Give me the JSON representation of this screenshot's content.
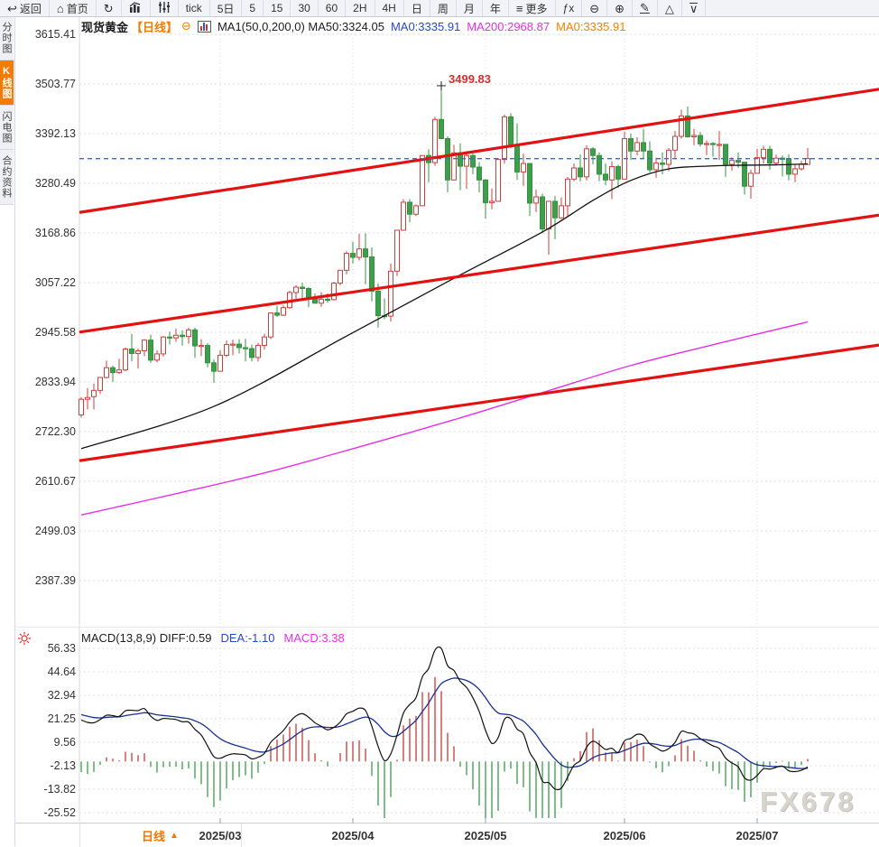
{
  "toolbar": {
    "items": [
      {
        "name": "back-button",
        "icon": "back-icon",
        "glyph": "↩",
        "label": "返回"
      },
      {
        "name": "home-button",
        "icon": "home-icon",
        "glyph": "⌂",
        "label": "首页"
      },
      {
        "name": "refresh-button",
        "icon": "refresh-icon",
        "glyph": "↻",
        "label": ""
      },
      {
        "name": "kline-chart-button",
        "icon": "kline-bars-icon",
        "glyph": "svg-kline",
        "label": ""
      },
      {
        "name": "indicator-settings-button",
        "icon": "sliders-icon",
        "glyph": "svg-sliders",
        "label": ""
      },
      {
        "name": "period-tick-button",
        "label": "tick"
      },
      {
        "name": "period-5day-button",
        "label": "5日"
      },
      {
        "name": "period-5min-button",
        "label": "5"
      },
      {
        "name": "period-15min-button",
        "label": "15"
      },
      {
        "name": "period-30min-button",
        "label": "30"
      },
      {
        "name": "period-60min-button",
        "label": "60"
      },
      {
        "name": "period-2h-button",
        "label": "2H"
      },
      {
        "name": "period-4h-button",
        "label": "4H"
      },
      {
        "name": "period-day-button",
        "label": "日"
      },
      {
        "name": "period-week-button",
        "label": "周"
      },
      {
        "name": "period-month-button",
        "label": "月"
      },
      {
        "name": "period-year-button",
        "label": "年"
      },
      {
        "name": "more-button",
        "icon": "menu-icon",
        "glyph": "≡",
        "label": "更多"
      },
      {
        "name": "fx-indicator-button",
        "label": "ƒx"
      },
      {
        "name": "zoom-out-button",
        "icon": "zoom-out-icon",
        "glyph": "⊖",
        "label": ""
      },
      {
        "name": "zoom-in-button",
        "icon": "zoom-in-icon",
        "glyph": "⊕",
        "label": ""
      },
      {
        "name": "draw-button",
        "icon": "pencil-icon",
        "glyph": "✎",
        "label": "",
        "underline": true
      },
      {
        "name": "scroll-up-button",
        "icon": "triangle-up-icon",
        "glyph": "△",
        "label": ""
      },
      {
        "name": "scroll-down-button",
        "icon": "chevron-down-line-icon",
        "glyph": "∨",
        "label": "",
        "overline": true
      }
    ]
  },
  "sidebar": {
    "tabs": [
      {
        "name": "tab-time-chart",
        "label": "分时图",
        "active": false
      },
      {
        "name": "tab-kline-chart",
        "label": "K线图",
        "active": true
      },
      {
        "name": "tab-flash-chart",
        "label": "闪电图",
        "active": false
      },
      {
        "name": "tab-contract-info",
        "label": "合约资料",
        "active": false
      }
    ]
  },
  "header": {
    "symbol": "现货黄金",
    "period_tag": "【日线】",
    "minus_icon": "⊖",
    "ma1_label": "MA1(50,0,200,0) MA50:3324.05",
    "ma0_blue": "MA0:3335.91",
    "ma200_label": "MA200:2968.87",
    "ma0_orange": "MA0:3335.91"
  },
  "macd_header": {
    "label": "MACD(13,8,9) DIFF:0.59",
    "dea": "DEA:-1.10",
    "macd": "MACD:3.38"
  },
  "bottom_bar": {
    "period_label": "日线",
    "period_arrow": "▲"
  },
  "watermark": "FX678",
  "colors": {
    "up": "#c9403e",
    "down": "#3f9e4c",
    "down_stroke": "#35913f",
    "trendline": "#e31212",
    "ma50": "#111111",
    "ma200": "#e62ee6",
    "current_price": "#1e6fff",
    "diff_line": "#111111",
    "dea_line": "#1a2f8f",
    "grid": "#dcdcdc",
    "axis_text": "#333333",
    "annotation": "#d03030",
    "accent_orange": "#f07d00"
  },
  "chart_data": {
    "type": "candlestick",
    "symbol": "现货黄金",
    "period": "日线",
    "price_axis_ticks": [
      3615.41,
      3503.77,
      3392.13,
      3280.49,
      3168.86,
      3057.22,
      2945.58,
      2833.94,
      2722.3,
      2610.67,
      2499.03,
      2387.39
    ],
    "x_ticks": [
      {
        "label": "2025/03",
        "index": 22
      },
      {
        "label": "2025/04",
        "index": 43
      },
      {
        "label": "2025/05",
        "index": 64
      },
      {
        "label": "2025/06",
        "index": 86
      },
      {
        "label": "2025/07",
        "index": 107
      }
    ],
    "current_price": 3335.91,
    "high_annotation": {
      "label": "3499.83",
      "price": 3499.83,
      "index": 57
    },
    "candles": [
      [
        2760,
        2800,
        2754,
        2795
      ],
      [
        2795,
        2820,
        2772,
        2799
      ],
      [
        2801,
        2830,
        2772,
        2815
      ],
      [
        2815,
        2845,
        2807,
        2844
      ],
      [
        2844,
        2882,
        2842,
        2866
      ],
      [
        2866,
        2871,
        2834,
        2855
      ],
      [
        2855,
        2886,
        2852,
        2861
      ],
      [
        2861,
        2911,
        2858,
        2908
      ],
      [
        2908,
        2942,
        2880,
        2898
      ],
      [
        2898,
        2909,
        2864,
        2904
      ],
      [
        2904,
        2930,
        2892,
        2928
      ],
      [
        2928,
        2940,
        2877,
        2883
      ],
      [
        2883,
        2905,
        2878,
        2897
      ],
      [
        2897,
        2937,
        2891,
        2935
      ],
      [
        2935,
        2947,
        2918,
        2933
      ],
      [
        2933,
        2954,
        2924,
        2939
      ],
      [
        2939,
        2950,
        2916,
        2936
      ],
      [
        2936,
        2956,
        2920,
        2951
      ],
      [
        2951,
        2956,
        2888,
        2915
      ],
      [
        2915,
        2930,
        2892,
        2916
      ],
      [
        2916,
        2921,
        2867,
        2877
      ],
      [
        2877,
        2885,
        2832,
        2858
      ],
      [
        2858,
        2905,
        2857,
        2894
      ],
      [
        2894,
        2927,
        2890,
        2918
      ],
      [
        2918,
        2929,
        2894,
        2919
      ],
      [
        2919,
        2930,
        2898,
        2911
      ],
      [
        2911,
        2931,
        2880,
        2909
      ],
      [
        2909,
        2918,
        2880,
        2889
      ],
      [
        2889,
        2922,
        2880,
        2916
      ],
      [
        2916,
        2942,
        2907,
        2935
      ],
      [
        2935,
        2990,
        2930,
        2989
      ],
      [
        2989,
        3005,
        2980,
        2984
      ],
      [
        2984,
        3006,
        2982,
        3001
      ],
      [
        3001,
        3039,
        2998,
        3035
      ],
      [
        3035,
        3052,
        3021,
        3047
      ],
      [
        3047,
        3057,
        3023,
        3044
      ],
      [
        3044,
        3047,
        3002,
        3022
      ],
      [
        3022,
        3033,
        3010,
        3011
      ],
      [
        3011,
        3036,
        3003,
        3020
      ],
      [
        3020,
        3033,
        3012,
        3019
      ],
      [
        3019,
        3059,
        3017,
        3056
      ],
      [
        3056,
        3086,
        3051,
        3085
      ],
      [
        3085,
        3128,
        3076,
        3123
      ],
      [
        3123,
        3149,
        3100,
        3114
      ],
      [
        3114,
        3167,
        3107,
        3133
      ],
      [
        3133,
        3168,
        3054,
        3115
      ],
      [
        3115,
        3136,
        3015,
        3038
      ],
      [
        3038,
        3055,
        2956,
        2983
      ],
      [
        2983,
        3022,
        2975,
        2982
      ],
      [
        2982,
        3100,
        2970,
        3083
      ],
      [
        3083,
        3176,
        3072,
        3175
      ],
      [
        3175,
        3245,
        3174,
        3238
      ],
      [
        3238,
        3245,
        3193,
        3211
      ],
      [
        3211,
        3233,
        3207,
        3230
      ],
      [
        3230,
        3343,
        3229,
        3343
      ],
      [
        3343,
        3357,
        3283,
        3327
      ],
      [
        3327,
        3430,
        3320,
        3424
      ],
      [
        3424,
        3499.83,
        3380,
        3381
      ],
      [
        3381,
        3386,
        3260,
        3288
      ],
      [
        3288,
        3367,
        3287,
        3349
      ],
      [
        3349,
        3370,
        3265,
        3319
      ],
      [
        3319,
        3353,
        3268,
        3343
      ],
      [
        3343,
        3348,
        3301,
        3317
      ],
      [
        3317,
        3328,
        3260,
        3288
      ],
      [
        3288,
        3290,
        3201,
        3237
      ],
      [
        3237,
        3269,
        3222,
        3240
      ],
      [
        3240,
        3337,
        3239,
        3334
      ],
      [
        3334,
        3435,
        3325,
        3430
      ],
      [
        3430,
        3438,
        3360,
        3365
      ],
      [
        3365,
        3415,
        3288,
        3306
      ],
      [
        3306,
        3347,
        3275,
        3325
      ],
      [
        3325,
        3326,
        3207,
        3236
      ],
      [
        3236,
        3266,
        3216,
        3250
      ],
      [
        3250,
        3257,
        3168,
        3178
      ],
      [
        3178,
        3240,
        3120,
        3240
      ],
      [
        3240,
        3252,
        3155,
        3203
      ],
      [
        3203,
        3249,
        3200,
        3230
      ],
      [
        3230,
        3295,
        3205,
        3290
      ],
      [
        3290,
        3325,
        3285,
        3315
      ],
      [
        3315,
        3345,
        3285,
        3295
      ],
      [
        3295,
        3366,
        3287,
        3358
      ],
      [
        3358,
        3362,
        3323,
        3343
      ],
      [
        3343,
        3350,
        3285,
        3301
      ],
      [
        3301,
        3325,
        3276,
        3288
      ],
      [
        3288,
        3330,
        3245,
        3318
      ],
      [
        3318,
        3322,
        3270,
        3290
      ],
      [
        3290,
        3397,
        3291,
        3381
      ],
      [
        3381,
        3392,
        3333,
        3353
      ],
      [
        3353,
        3384,
        3343,
        3372
      ],
      [
        3372,
        3403,
        3337,
        3353
      ],
      [
        3353,
        3375,
        3305,
        3311
      ],
      [
        3311,
        3338,
        3293,
        3326
      ],
      [
        3326,
        3350,
        3301,
        3323
      ],
      [
        3323,
        3360,
        3308,
        3355
      ],
      [
        3355,
        3398,
        3337,
        3386
      ],
      [
        3386,
        3446,
        3381,
        3432
      ],
      [
        3432,
        3453,
        3383,
        3385
      ],
      [
        3385,
        3403,
        3366,
        3388
      ],
      [
        3388,
        3396,
        3363,
        3369
      ],
      [
        3369,
        3377,
        3344,
        3370
      ],
      [
        3370,
        3373,
        3340,
        3368
      ],
      [
        3368,
        3398,
        3333,
        3368
      ],
      [
        3368,
        3369,
        3295,
        3323
      ],
      [
        3323,
        3339,
        3309,
        3332
      ],
      [
        3332,
        3350,
        3315,
        3328
      ],
      [
        3328,
        3328,
        3255,
        3274
      ],
      [
        3274,
        3311,
        3246,
        3303
      ],
      [
        3303,
        3358,
        3302,
        3338
      ],
      [
        3338,
        3365,
        3325,
        3357
      ],
      [
        3357,
        3365,
        3311,
        3326
      ],
      [
        3326,
        3345,
        3323,
        3337
      ],
      [
        3337,
        3343,
        3296,
        3336
      ],
      [
        3336,
        3346,
        3287,
        3301
      ],
      [
        3301,
        3322,
        3283,
        3313
      ],
      [
        3313,
        3331,
        3309,
        3323
      ],
      [
        3323,
        3360,
        3322,
        3336
      ]
    ],
    "ma50_points": [
      [
        0,
        2684
      ],
      [
        21,
        2779
      ],
      [
        42,
        2937
      ],
      [
        59,
        3067
      ],
      [
        73,
        3171
      ],
      [
        81,
        3242
      ],
      [
        87,
        3287
      ],
      [
        93,
        3313
      ],
      [
        99,
        3319
      ],
      [
        104,
        3321
      ],
      [
        110,
        3322
      ],
      [
        115,
        3324.05
      ]
    ],
    "ma200_points": [
      [
        0,
        2535
      ],
      [
        16,
        2586
      ],
      [
        30,
        2633
      ],
      [
        44,
        2688
      ],
      [
        59,
        2749
      ],
      [
        73,
        2810
      ],
      [
        87,
        2871
      ],
      [
        101,
        2921
      ],
      [
        115,
        2968.87
      ]
    ],
    "trendlines": [
      {
        "name": "upper-channel-line",
        "price_left": 3215,
        "price_right": 3492
      },
      {
        "name": "middle-channel-line",
        "price_left": 2946,
        "price_right": 3209
      },
      {
        "name": "lower-channel-line",
        "price_left": 2657,
        "price_right": 2917
      }
    ],
    "macd": {
      "params": "13,8,9",
      "diff": 0.59,
      "dea": -1.1,
      "macd": 3.38,
      "axis_ticks": [
        56.33,
        44.64,
        32.94,
        21.25,
        9.56,
        -2.13,
        -13.82,
        -25.52
      ],
      "seed": {
        "fast": 2772,
        "slow": 2750,
        "dea": 24
      },
      "derived_from_closes": true
    }
  }
}
